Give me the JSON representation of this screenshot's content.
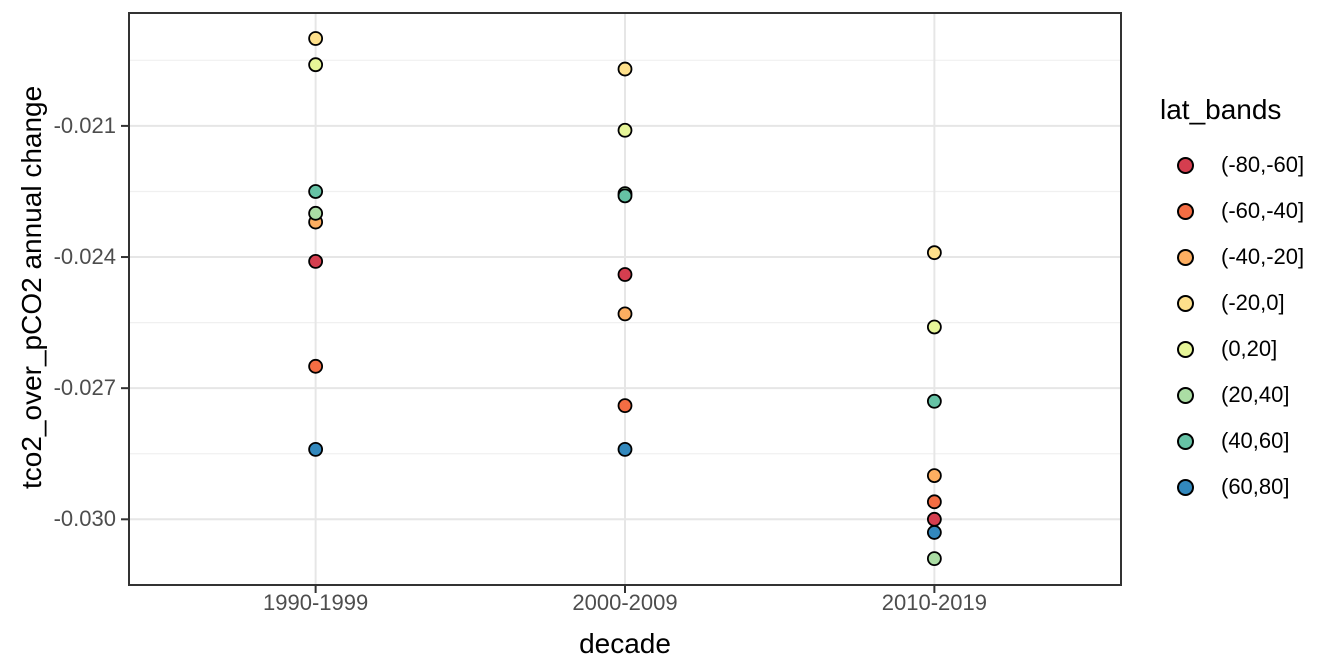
{
  "chart_data": {
    "type": "scatter",
    "xlabel": "decade",
    "ylabel": "tco2_over_pCO2 annual change",
    "legend_title": "lat_bands",
    "legend_position": "right",
    "grid": true,
    "categories": [
      "1990-1999",
      "2000-2009",
      "2010-2019"
    ],
    "y_axis": {
      "tick_values": [
        -0.021,
        -0.024,
        -0.027,
        -0.03
      ],
      "tick_labels": [
        "-0.021",
        "-0.024",
        "-0.027",
        "-0.030"
      ],
      "minor_tick_values": [
        -0.0195,
        -0.0225,
        -0.0255,
        -0.0285
      ]
    },
    "ylim": [
      -0.03148,
      -0.01844
    ],
    "point_style": {
      "fill_by_series": true,
      "stroke": "#000000"
    },
    "colors": {
      "grid_major": "#e6e6e6",
      "grid_minor": "#f0f0f0",
      "panel_border": "#333333",
      "tick_mark": "#333333",
      "tick_text": "#4d4d4d"
    },
    "series": [
      {
        "name": "(-80,-60]",
        "color": "#D53E4F",
        "values": [
          -0.0241,
          -0.0244,
          -0.03
        ]
      },
      {
        "name": "(-60,-40]",
        "color": "#F46D43",
        "values": [
          -0.0265,
          -0.0274,
          -0.0296
        ]
      },
      {
        "name": "(-40,-20]",
        "color": "#FDAE61",
        "values": [
          -0.0232,
          -0.0253,
          -0.029
        ]
      },
      {
        "name": "(-20,0]",
        "color": "#FEE08B",
        "values": [
          -0.019,
          -0.0197,
          -0.0239
        ]
      },
      {
        "name": "(0,20]",
        "color": "#E6F598",
        "values": [
          -0.0196,
          -0.0211,
          -0.0256
        ]
      },
      {
        "name": "(20,40]",
        "color": "#ABDDA4",
        "values": [
          -0.023,
          -0.02255,
          -0.0309
        ]
      },
      {
        "name": "(40,60]",
        "color": "#66C2A5",
        "values": [
          -0.0225,
          -0.0226,
          -0.0273
        ]
      },
      {
        "name": "(60,80]",
        "color": "#3288BD",
        "values": [
          -0.0284,
          -0.0284,
          -0.0303
        ]
      }
    ]
  }
}
